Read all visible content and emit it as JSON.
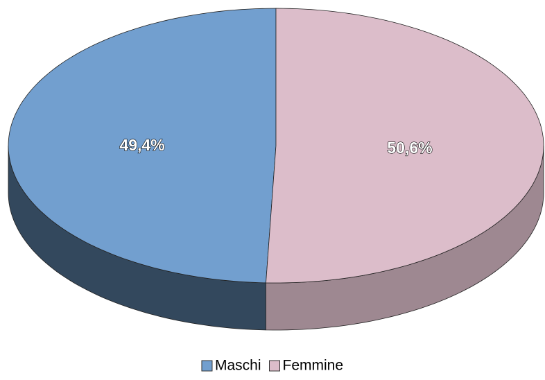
{
  "chart_data": {
    "type": "pie",
    "categories": [
      "Maschi",
      "Femmine"
    ],
    "values": [
      49.4,
      50.6
    ],
    "value_labels": [
      "49,4%",
      "50,6%"
    ],
    "colors": [
      "#729fcf",
      "#dcbdca"
    ],
    "legend": "bottom"
  }
}
